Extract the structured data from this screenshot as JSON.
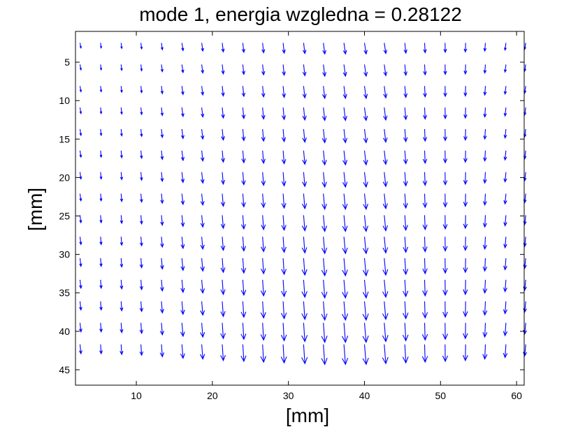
{
  "chart_data": {
    "type": "quiver",
    "title": "mode 1, energia wzgledna = 0.28122",
    "xlabel": "[mm]",
    "ylabel": "[mm]",
    "xlim": [
      2,
      61
    ],
    "ylim": [
      47,
      1
    ],
    "y_axis_direction": "down",
    "xticks": [
      10,
      20,
      30,
      40,
      50,
      60
    ],
    "yticks": [
      5,
      10,
      15,
      20,
      25,
      30,
      35,
      40,
      45
    ],
    "grid": false,
    "arrow_color": "#0000ff",
    "columns_x": [
      2.6,
      5.3,
      8.0,
      10.6,
      13.3,
      16.0,
      18.6,
      21.3,
      24.0,
      26.6,
      29.3,
      32.0,
      34.6,
      37.3,
      40.0,
      42.6,
      45.3,
      47.9,
      50.6,
      53.3,
      55.9,
      58.6,
      61.2
    ],
    "rows_y": [
      2.5,
      5.3,
      8.1,
      10.9,
      13.7,
      16.5,
      19.3,
      22.1,
      24.9,
      27.7,
      30.5,
      33.3,
      36.1,
      38.9,
      41.7
    ],
    "column_u": [
      0.12,
      0.08,
      0.08,
      0.1,
      0.12,
      0.14,
      0.14,
      0.14,
      0.14,
      0.14,
      0.14,
      0.16,
      0.18,
      0.2,
      0.22,
      0.2,
      0.14,
      0.08,
      0.02,
      -0.04,
      -0.08,
      -0.12,
      -0.14
    ],
    "column_vmax": [
      1.2,
      1.2,
      1.3,
      1.4,
      1.6,
      1.8,
      1.9,
      2.1,
      2.2,
      2.3,
      2.4,
      2.5,
      2.6,
      2.6,
      2.6,
      2.5,
      2.4,
      2.3,
      2.2,
      2.1,
      1.9,
      1.7,
      1.5
    ]
  }
}
